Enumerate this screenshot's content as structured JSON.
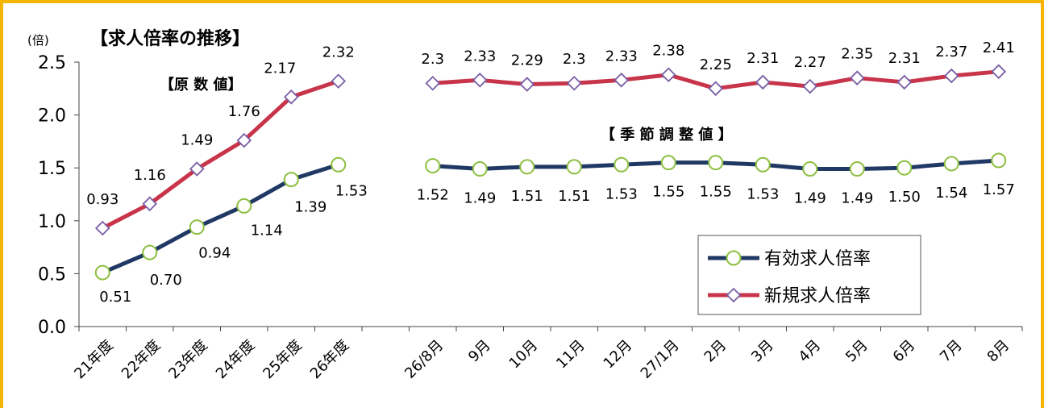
{
  "chart_data": {
    "type": "line",
    "title": "【求人倍率の推移】",
    "ylabel": "(倍)",
    "ylim": [
      0,
      2.5
    ],
    "yticks": [
      "0.0",
      "0.5",
      "1.0",
      "1.5",
      "2.0",
      "2.5"
    ],
    "section_labels": {
      "original": "【原 数 値】",
      "seasonal": "【 季 節 調 整 値 】"
    },
    "categories": [
      "21年度",
      "22年度",
      "23年度",
      "24年度",
      "25年度",
      "26年度",
      "",
      "26/8月",
      "9月",
      "10月",
      "11月",
      "12月",
      "27/1月",
      "2月",
      "3月",
      "4月",
      "5月",
      "6月",
      "7月",
      "8月"
    ],
    "series": [
      {
        "name": "有効求人倍率",
        "color": "#1f3864",
        "marker": "circle",
        "segments": [
          {
            "values": [
              0.51,
              0.7,
              0.94,
              1.14,
              1.39,
              1.53
            ],
            "labels": [
              "0.51",
              "0.70",
              "0.94",
              "1.14",
              "1.39",
              "1.53"
            ]
          },
          {
            "values": [
              1.52,
              1.49,
              1.51,
              1.51,
              1.53,
              1.55,
              1.55,
              1.53,
              1.49,
              1.49,
              1.5,
              1.54,
              1.57
            ],
            "labels": [
              "1.52",
              "1.49",
              "1.51",
              "1.51",
              "1.53",
              "1.55",
              "1.55",
              "1.53",
              "1.49",
              "1.49",
              "1.50",
              "1.54",
              "1.57"
            ]
          }
        ]
      },
      {
        "name": "新規求人倍率",
        "color": "#c8344a",
        "marker": "diamond",
        "segments": [
          {
            "values": [
              0.93,
              1.16,
              1.49,
              1.76,
              2.17,
              2.32
            ],
            "labels": [
              "0.93",
              "1.16",
              "1.49",
              "1.76",
              "2.17",
              "2.32"
            ]
          },
          {
            "values": [
              2.3,
              2.33,
              2.29,
              2.3,
              2.33,
              2.38,
              2.25,
              2.31,
              2.27,
              2.35,
              2.31,
              2.37,
              2.41
            ],
            "labels": [
              "2.3",
              "2.33",
              "2.29",
              "2.3",
              "2.33",
              "2.38",
              "2.25",
              "2.31",
              "2.27",
              "2.35",
              "2.31",
              "2.37",
              "2.41"
            ]
          }
        ]
      }
    ],
    "legend": "bottom-right",
    "grid": false
  }
}
